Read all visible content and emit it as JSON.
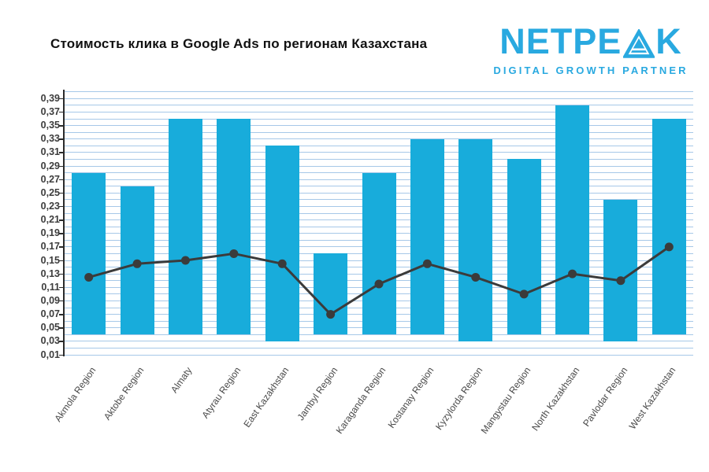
{
  "header": {
    "title": "Стоимость клика в Google Ads по регионам Казахстана",
    "logo": {
      "text_before_icon": "NETPE",
      "text_after_icon": "K",
      "tagline": "DIGITAL GROWTH PARTNER",
      "color": "#29A9E0"
    }
  },
  "chart_data": {
    "type": "bar",
    "subtype": "floating-range-bars-with-line-overlay",
    "title": "Стоимость клика в Google Ads по регионам Казахстана",
    "xlabel": "",
    "ylabel": "",
    "ylim": [
      0.01,
      0.4
    ],
    "grid": true,
    "grid_step": 0.01,
    "legend": false,
    "y_tick_step": 0.02,
    "y_tick_labels": [
      "0,39",
      "0,37",
      "0,35",
      "0,33",
      "0,31",
      "0,29",
      "0,27",
      "0,25",
      "0,23",
      "0,21",
      "0,19",
      "0,17",
      "0,15",
      "0,13",
      "0,11",
      "0,09",
      "0,07",
      "0,05",
      "0,03",
      "0,01"
    ],
    "categories": [
      "Akmola Region",
      "Aktobe Region",
      "Almaty",
      "Atyrau Region",
      "East Kazakhstan",
      "Jambyl Region",
      "Karaganda Region",
      "Kostanay Region",
      "Kyzylorda Region",
      "Mangystau Region",
      "North Kazakhstan",
      "Pavlodar Region",
      "West Kazakhstan"
    ],
    "series": [
      {
        "name": "bars",
        "type": "bar",
        "tops": [
          0.28,
          0.26,
          0.36,
          0.36,
          0.32,
          0.16,
          0.28,
          0.33,
          0.33,
          0.3,
          0.38,
          0.24,
          0.36
        ],
        "bottoms": [
          0.04,
          0.04,
          0.04,
          0.04,
          0.03,
          0.04,
          0.04,
          0.04,
          0.03,
          0.04,
          0.04,
          0.03,
          0.04
        ],
        "color": "#18ACDB"
      },
      {
        "name": "line",
        "type": "line",
        "values": [
          0.125,
          0.145,
          0.15,
          0.16,
          0.145,
          0.07,
          0.115,
          0.145,
          0.125,
          0.1,
          0.13,
          0.12,
          0.17
        ],
        "color": "#3B3B3B",
        "marker": "circle"
      }
    ],
    "colors": {
      "grid": "#A6C8E8",
      "axis": "#2B2B2B",
      "x_labels": "#4A4A4A",
      "y_labels": "#3D3D3D"
    }
  }
}
